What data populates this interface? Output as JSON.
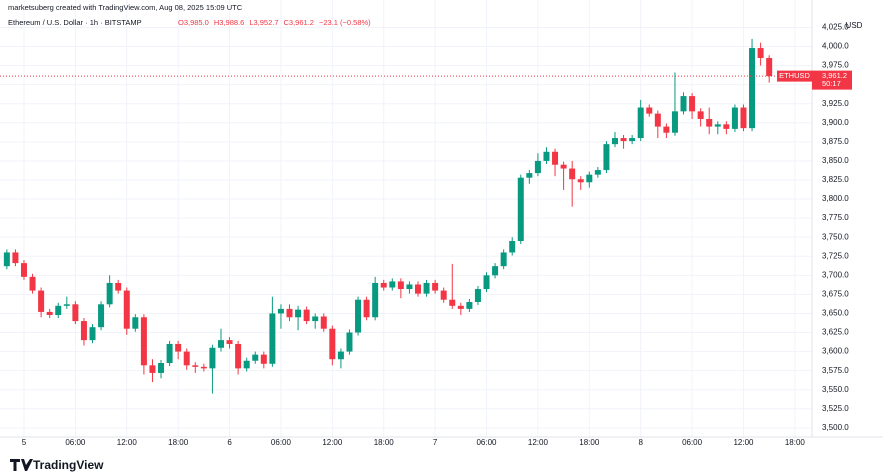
{
  "header": {
    "credit": "marketsuberg created with TradingView.com, Aug 08, 2025 15:09 UTC",
    "symbol_line": "Ethereum / U.S. Dollar · 1h · BITSTAMP",
    "ohlc_line": [
      "O3,985.0",
      "H3,988.6",
      "L3,952.7",
      "C3,961.2",
      "−23.1 (−0.58%)"
    ]
  },
  "footer": {
    "logo": "TradingView"
  },
  "chart_data": {
    "type": "candlestick",
    "y_axis_label": "USD",
    "symbol": "ETHUSD",
    "countdown": "50:17",
    "last_price": {
      "value": 3961.2,
      "label": "3,961.2"
    },
    "up_color": "#089981",
    "down_color": "#f23645",
    "grid": true,
    "x": [
      -2,
      -1,
      0,
      1,
      2,
      3,
      4,
      5,
      6,
      7,
      8,
      9,
      10,
      11,
      12,
      13,
      14,
      15,
      16,
      17,
      18,
      19,
      20,
      21,
      22,
      23,
      24,
      25,
      26,
      27,
      28,
      29,
      30,
      31,
      32,
      33,
      34,
      35,
      36,
      37,
      38,
      39,
      40,
      41,
      42,
      43,
      44,
      45,
      46,
      47,
      48,
      49,
      50,
      51,
      52,
      53,
      54,
      55,
      56,
      57,
      58,
      59,
      60,
      61,
      62,
      63,
      64,
      65,
      66,
      67,
      68,
      69,
      70,
      71,
      72,
      73,
      74,
      75,
      76,
      77,
      78,
      79,
      80,
      81,
      82,
      83,
      84,
      85,
      86,
      87
    ],
    "open": [
      3712,
      3730,
      3716,
      3698,
      3680,
      3652,
      3648,
      3660,
      3662,
      3640,
      3615,
      3632,
      3662,
      3690,
      3680,
      3630,
      3645,
      3582,
      3572,
      3585,
      3610,
      3600,
      3582,
      3580,
      3578,
      3605,
      3615,
      3610,
      3578,
      3588,
      3596,
      3584,
      3650,
      3656,
      3645,
      3655,
      3640,
      3646,
      3630,
      3590,
      3600,
      3625,
      3668,
      3645,
      3690,
      3684,
      3692,
      3682,
      3688,
      3676,
      3690,
      3680,
      3668,
      3660,
      3656,
      3665,
      3682,
      3700,
      3712,
      3730,
      3745,
      3828,
      3834,
      3850,
      3862,
      3845,
      3840,
      3826,
      3822,
      3832,
      3838,
      3872,
      3880,
      3876,
      3880,
      3920,
      3912,
      3895,
      3887,
      3915,
      3935,
      3915,
      3905,
      3895,
      3898,
      3892,
      3920,
      3893,
      3998,
      3985
    ],
    "high": [
      3734,
      3734,
      3720,
      3702,
      3684,
      3656,
      3664,
      3672,
      3666,
      3644,
      3636,
      3666,
      3700,
      3694,
      3684,
      3649,
      3649,
      3590,
      3589,
      3614,
      3614,
      3604,
      3586,
      3584,
      3609,
      3630,
      3619,
      3614,
      3592,
      3600,
      3600,
      3672,
      3662,
      3662,
      3660,
      3659,
      3650,
      3650,
      3634,
      3604,
      3629,
      3672,
      3672,
      3698,
      3694,
      3696,
      3696,
      3692,
      3692,
      3694,
      3694,
      3684,
      3715,
      3664,
      3669,
      3686,
      3704,
      3716,
      3734,
      3750,
      3832,
      3838,
      3860,
      3868,
      3866,
      3849,
      3850,
      3830,
      3836,
      3842,
      3876,
      3888,
      3884,
      3884,
      3930,
      3924,
      3916,
      3899,
      3966,
      3940,
      3939,
      3919,
      3920,
      3902,
      3902,
      3924,
      3924,
      4010,
      4005,
      3988.6
    ],
    "low": [
      3708,
      3712,
      3694,
      3676,
      3645,
      3644,
      3644,
      3656,
      3636,
      3608,
      3611,
      3628,
      3658,
      3676,
      3622,
      3626,
      3570,
      3560,
      3565,
      3581,
      3590,
      3576,
      3572,
      3574,
      3545,
      3600,
      3604,
      3570,
      3574,
      3584,
      3578,
      3580,
      3630,
      3640,
      3628,
      3636,
      3630,
      3626,
      3582,
      3578,
      3596,
      3621,
      3641,
      3641,
      3680,
      3680,
      3670,
      3676,
      3672,
      3672,
      3676,
      3664,
      3656,
      3648,
      3652,
      3661,
      3678,
      3696,
      3708,
      3726,
      3741,
      3820,
      3830,
      3846,
      3830,
      3812,
      3790,
      3812,
      3815,
      3828,
      3834,
      3868,
      3866,
      3872,
      3876,
      3908,
      3880,
      3880,
      3883,
      3911,
      3905,
      3895,
      3885,
      3885,
      3885,
      3888,
      3889,
      3889,
      3975,
      3952.7
    ],
    "close": [
      3730,
      3716,
      3698,
      3680,
      3652,
      3648,
      3660,
      3662,
      3640,
      3615,
      3632,
      3662,
      3690,
      3680,
      3630,
      3645,
      3582,
      3572,
      3585,
      3610,
      3600,
      3582,
      3580,
      3578,
      3605,
      3615,
      3610,
      3578,
      3588,
      3596,
      3584,
      3650,
      3656,
      3645,
      3655,
      3640,
      3646,
      3630,
      3590,
      3600,
      3625,
      3668,
      3645,
      3690,
      3684,
      3692,
      3682,
      3688,
      3676,
      3690,
      3680,
      3668,
      3660,
      3656,
      3665,
      3682,
      3700,
      3712,
      3730,
      3745,
      3828,
      3834,
      3850,
      3862,
      3845,
      3840,
      3826,
      3822,
      3832,
      3838,
      3872,
      3880,
      3876,
      3880,
      3920,
      3912,
      3895,
      3887,
      3915,
      3935,
      3915,
      3905,
      3895,
      3898,
      3892,
      3920,
      3893,
      3998,
      3985,
      3961.2
    ],
    "xlim": [
      -2.8,
      92
    ],
    "ylim": [
      3488,
      4061
    ],
    "xticks": [
      {
        "value": 0,
        "label": "5"
      },
      {
        "value": 6,
        "label": "06:00"
      },
      {
        "value": 12,
        "label": "12:00"
      },
      {
        "value": 18,
        "label": "18:00"
      },
      {
        "value": 24,
        "label": "6"
      },
      {
        "value": 30,
        "label": "06:00"
      },
      {
        "value": 36,
        "label": "12:00"
      },
      {
        "value": 42,
        "label": "18:00"
      },
      {
        "value": 48,
        "label": "7"
      },
      {
        "value": 54,
        "label": "06:00"
      },
      {
        "value": 60,
        "label": "12:00"
      },
      {
        "value": 66,
        "label": "18:00"
      },
      {
        "value": 72,
        "label": "8"
      },
      {
        "value": 78,
        "label": "06:00"
      },
      {
        "value": 84,
        "label": "12:00"
      },
      {
        "value": 90,
        "label": "18:00"
      }
    ],
    "yticks": [
      {
        "value": 3500,
        "label": "3,500.0"
      },
      {
        "value": 3525,
        "label": "3,525.0"
      },
      {
        "value": 3550,
        "label": "3,550.0"
      },
      {
        "value": 3575,
        "label": "3,575.0"
      },
      {
        "value": 3600,
        "label": "3,600.0"
      },
      {
        "value": 3625,
        "label": "3,625.0"
      },
      {
        "value": 3650,
        "label": "3,650.0"
      },
      {
        "value": 3675,
        "label": "3,675.0"
      },
      {
        "value": 3700,
        "label": "3,700.0"
      },
      {
        "value": 3725,
        "label": "3,725.0"
      },
      {
        "value": 3750,
        "label": "3,750.0"
      },
      {
        "value": 3775,
        "label": "3,775.0"
      },
      {
        "value": 3800,
        "label": "3,800.0"
      },
      {
        "value": 3825,
        "label": "3,825.0"
      },
      {
        "value": 3850,
        "label": "3,850.0"
      },
      {
        "value": 3875,
        "label": "3,875.0"
      },
      {
        "value": 3900,
        "label": "3,900.0"
      },
      {
        "value": 3925,
        "label": "3,925.0"
      },
      {
        "value": 3950,
        "label": "3,950.0"
      },
      {
        "value": 3975,
        "label": "3,975.0"
      },
      {
        "value": 4000,
        "label": "4,000.0"
      },
      {
        "value": 4025,
        "label": "4,025.0"
      }
    ]
  }
}
